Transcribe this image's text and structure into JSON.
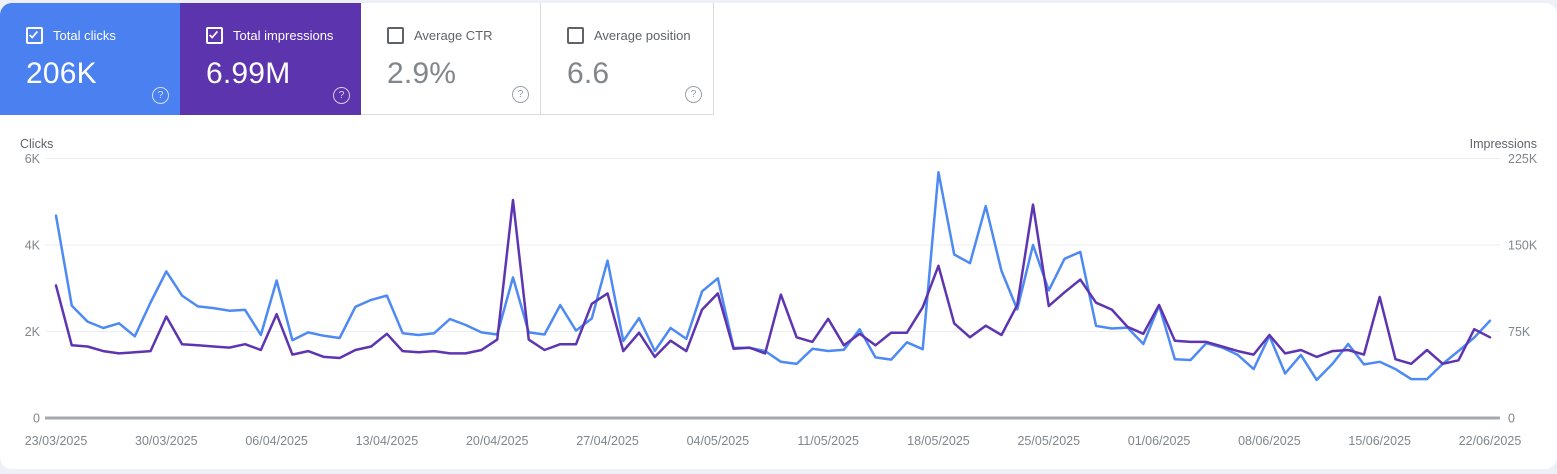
{
  "cards": [
    {
      "label": "Total clicks",
      "value": "206K",
      "checked": true,
      "bg": "#4a80f0"
    },
    {
      "label": "Total impressions",
      "value": "6.99M",
      "checked": true,
      "bg": "#5c34ae"
    },
    {
      "label": "Average CTR",
      "value": "2.9%",
      "checked": false,
      "bg": ""
    },
    {
      "label": "Average position",
      "value": "6.6",
      "checked": false,
      "bg": ""
    }
  ],
  "icons": {
    "help": "?"
  },
  "chart_data": {
    "type": "line",
    "grid": "horizontal",
    "legend": "none",
    "left_axis": {
      "label": "Clicks",
      "ticks": [
        "6K",
        "4K",
        "2K",
        "0"
      ],
      "max": 6000
    },
    "right_axis": {
      "label": "Impressions",
      "ticks": [
        "225K",
        "150K",
        "75K",
        "0"
      ],
      "max": 225000
    },
    "x_labels": [
      "23/03/2025",
      "30/03/2025",
      "06/04/2025",
      "13/04/2025",
      "20/04/2025",
      "27/04/2025",
      "04/05/2025",
      "11/05/2025",
      "18/05/2025",
      "25/05/2025",
      "01/06/2025",
      "08/06/2025",
      "15/06/2025",
      "22/06/2025"
    ],
    "x_label_step": 7,
    "series": [
      {
        "name": "Clicks",
        "axis": "left",
        "color": "#4e8af4",
        "values": [
          4680,
          2600,
          2230,
          2080,
          2190,
          1890,
          2670,
          3390,
          2830,
          2580,
          2540,
          2480,
          2500,
          1920,
          3180,
          1800,
          1980,
          1900,
          1850,
          2570,
          2730,
          2830,
          1960,
          1920,
          1960,
          2290,
          2150,
          1980,
          1930,
          3250,
          1980,
          1930,
          2610,
          2020,
          2300,
          3640,
          1780,
          2310,
          1550,
          2080,
          1830,
          2930,
          3230,
          1620,
          1620,
          1550,
          1300,
          1250,
          1600,
          1550,
          1580,
          2050,
          1400,
          1350,
          1750,
          1590,
          5680,
          3780,
          3580,
          4900,
          3400,
          2510,
          4000,
          2950,
          3680,
          3840,
          2130,
          2070,
          2090,
          1710,
          2600,
          1360,
          1340,
          1730,
          1630,
          1460,
          1130,
          1900,
          1030,
          1460,
          880,
          1250,
          1710,
          1240,
          1300,
          1130,
          900,
          900,
          1250,
          1550,
          1860,
          2250
        ]
      },
      {
        "name": "Impressions",
        "axis": "right",
        "color": "#5e35b1",
        "values": [
          115000,
          63000,
          62000,
          58000,
          56000,
          57000,
          58000,
          88000,
          64000,
          63000,
          62000,
          61000,
          64000,
          59000,
          90000,
          55000,
          58000,
          53000,
          52000,
          59000,
          62000,
          73000,
          58000,
          57000,
          58000,
          56000,
          56000,
          59000,
          68000,
          189000,
          68000,
          59000,
          64000,
          64000,
          99000,
          108000,
          58000,
          74000,
          53000,
          67000,
          58000,
          94000,
          108000,
          60000,
          61000,
          56000,
          107000,
          70000,
          66000,
          86000,
          63000,
          73000,
          63000,
          74000,
          74000,
          96000,
          132000,
          82000,
          70000,
          80000,
          72000,
          98000,
          185000,
          97000,
          109000,
          120000,
          100000,
          94000,
          79000,
          73000,
          98000,
          67000,
          66000,
          66000,
          62000,
          58000,
          55000,
          72000,
          56000,
          59000,
          53000,
          58000,
          59000,
          55000,
          105000,
          51000,
          47000,
          59000,
          47000,
          50000,
          77000,
          70000
        ]
      }
    ]
  }
}
